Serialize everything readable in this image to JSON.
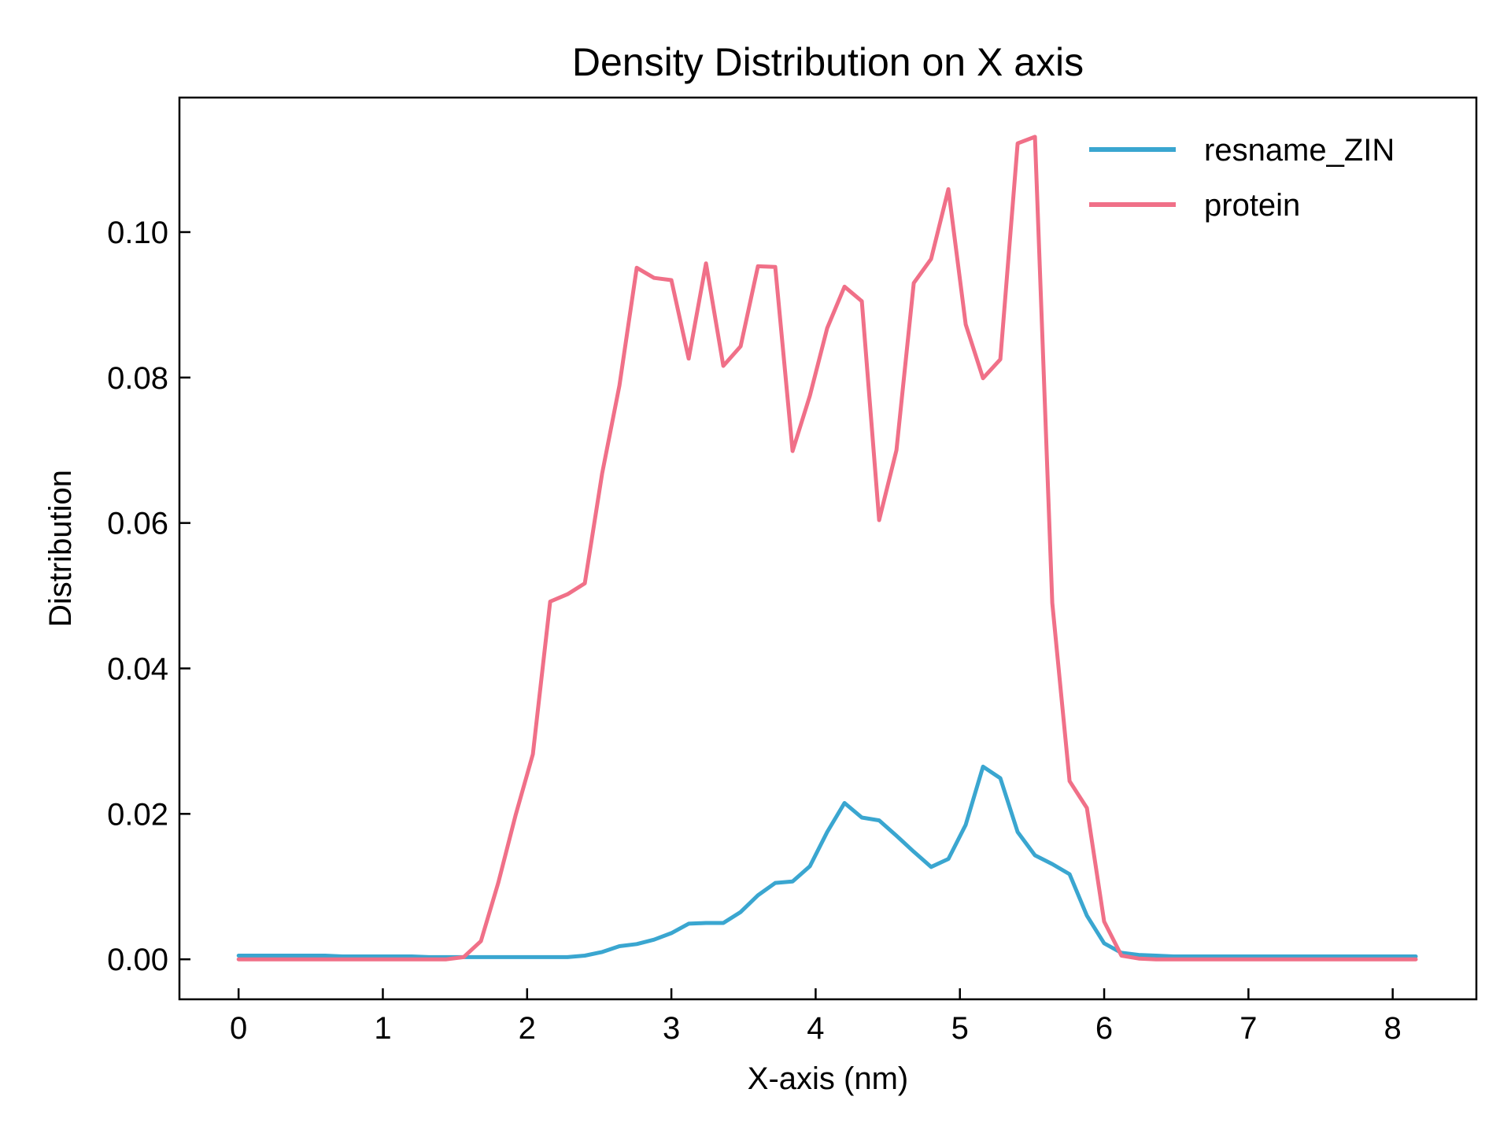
{
  "chart_data": {
    "type": "line",
    "title": "Density Distribution on X axis",
    "xlabel": "X-axis (nm)",
    "ylabel": "Distribution",
    "xlim": [
      -0.41,
      8.58
    ],
    "ylim": [
      -0.0055,
      0.1185
    ],
    "x_ticks": [
      0,
      1,
      2,
      3,
      4,
      5,
      6,
      7,
      8
    ],
    "x_tick_labels": [
      "0",
      "1",
      "2",
      "3",
      "4",
      "5",
      "6",
      "7",
      "8"
    ],
    "y_ticks": [
      0.0,
      0.02,
      0.04,
      0.06,
      0.08,
      0.1
    ],
    "y_tick_labels": [
      "0.00",
      "0.02",
      "0.04",
      "0.06",
      "0.08",
      "0.10"
    ],
    "grid": false,
    "legend_position": "top-right",
    "series": [
      {
        "name": "resname_ZIN",
        "color": "#3aa6d0",
        "x": [
          0,
          0.12,
          0.24,
          0.36,
          0.48,
          0.6,
          0.72,
          0.84,
          0.96,
          1.08,
          1.2,
          1.32,
          1.44,
          1.56,
          1.68,
          1.8,
          1.92,
          2.04,
          2.16,
          2.28,
          2.4,
          2.52,
          2.64,
          2.76,
          2.88,
          3.0,
          3.12,
          3.24,
          3.36,
          3.48,
          3.6,
          3.72,
          3.84,
          3.96,
          4.08,
          4.2,
          4.32,
          4.44,
          4.56,
          4.68,
          4.8,
          4.92,
          5.04,
          5.16,
          5.28,
          5.4,
          5.52,
          5.64,
          5.76,
          5.88,
          6.0,
          6.12,
          6.24,
          6.36,
          6.48,
          6.6,
          6.72,
          6.84,
          6.96,
          7.08,
          7.2,
          7.32,
          7.44,
          7.56,
          7.68,
          7.8,
          7.92,
          8.04,
          8.16
        ],
        "y": [
          0.0005,
          0.0005,
          0.0005,
          0.0005,
          0.0005,
          0.0005,
          0.0004,
          0.0004,
          0.0004,
          0.0004,
          0.0004,
          0.0003,
          0.0003,
          0.0003,
          0.0003,
          0.0003,
          0.0003,
          0.0003,
          0.0003,
          0.0003,
          0.0005,
          0.001,
          0.0018,
          0.0021,
          0.0027,
          0.0036,
          0.0049,
          0.005,
          0.005,
          0.0065,
          0.0088,
          0.0105,
          0.0107,
          0.0128,
          0.0175,
          0.0215,
          0.0195,
          0.0191,
          0.017,
          0.0148,
          0.0127,
          0.0138,
          0.0185,
          0.0265,
          0.0249,
          0.0175,
          0.0143,
          0.0131,
          0.0117,
          0.006,
          0.0022,
          0.0009,
          0.0006,
          0.0005,
          0.0004,
          0.0004,
          0.0004,
          0.0004,
          0.0004,
          0.0004,
          0.0004,
          0.0004,
          0.0004,
          0.0004,
          0.0004,
          0.0004,
          0.0004,
          0.0004,
          0.0004
        ]
      },
      {
        "name": "protein",
        "color": "#f07088",
        "x": [
          0,
          0.12,
          0.24,
          0.36,
          0.48,
          0.6,
          0.72,
          0.84,
          0.96,
          1.08,
          1.2,
          1.32,
          1.44,
          1.56,
          1.68,
          1.8,
          1.92,
          2.04,
          2.16,
          2.28,
          2.4,
          2.52,
          2.64,
          2.76,
          2.88,
          3.0,
          3.12,
          3.24,
          3.36,
          3.48,
          3.6,
          3.72,
          3.84,
          3.96,
          4.08,
          4.2,
          4.32,
          4.44,
          4.56,
          4.68,
          4.8,
          4.92,
          5.04,
          5.16,
          5.28,
          5.4,
          5.52,
          5.64,
          5.76,
          5.88,
          6.0,
          6.12,
          6.24,
          6.36,
          6.48,
          6.6,
          6.72,
          6.84,
          6.96,
          7.08,
          7.2,
          7.32,
          7.44,
          7.56,
          7.68,
          7.8,
          7.92,
          8.04,
          8.16
        ],
        "y": [
          0.0,
          0.0,
          0.0,
          0.0,
          0.0,
          0.0,
          0.0,
          0.0,
          0.0,
          0.0,
          0.0,
          0.0,
          0.0,
          0.0003,
          0.0025,
          0.0105,
          0.0198,
          0.0282,
          0.0492,
          0.0502,
          0.0517,
          0.0668,
          0.0789,
          0.0951,
          0.0937,
          0.0934,
          0.0826,
          0.0957,
          0.0816,
          0.0843,
          0.0953,
          0.0952,
          0.0699,
          0.0775,
          0.0868,
          0.0925,
          0.0905,
          0.0604,
          0.07,
          0.093,
          0.0963,
          0.1059,
          0.0873,
          0.0799,
          0.0825,
          0.1122,
          0.1131,
          0.049,
          0.0245,
          0.0208,
          0.0052,
          0.0005,
          0.0001,
          0.0,
          0.0,
          0.0,
          0.0,
          0.0,
          0.0,
          0.0,
          0.0,
          0.0,
          0.0,
          0.0,
          0.0,
          0.0,
          0.0,
          0.0,
          0.0
        ]
      }
    ]
  }
}
